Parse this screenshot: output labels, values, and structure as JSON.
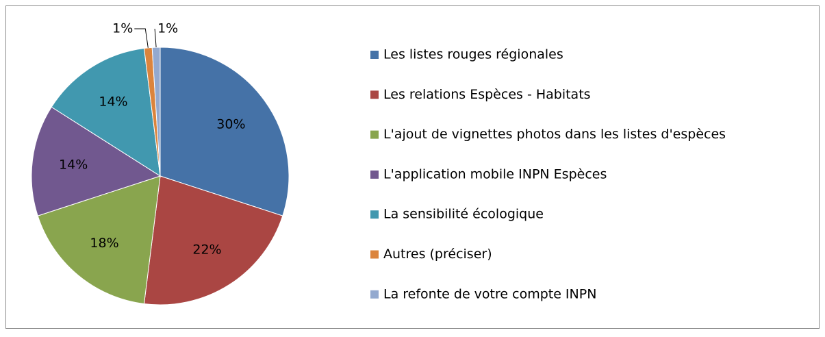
{
  "chart_data": {
    "type": "pie",
    "categories": [
      "Les listes rouges régionales",
      "Les relations Espèces - Habitats",
      "L'ajout de vignettes photos dans les listes d'espèces",
      "L'application mobile INPN Espèces",
      "La sensibilité écologique",
      "Autres (préciser)",
      "La refonte de votre compte INPN"
    ],
    "values": [
      30,
      22,
      18,
      14,
      14,
      1,
      1
    ],
    "value_labels": [
      "30%",
      "22%",
      "18%",
      "14%",
      "14%",
      "1%",
      "1%"
    ],
    "colors": [
      "#4572a7",
      "#aa4643",
      "#89a54e",
      "#71588f",
      "#4198af",
      "#db843d",
      "#93a9cf"
    ],
    "legend": "right"
  }
}
